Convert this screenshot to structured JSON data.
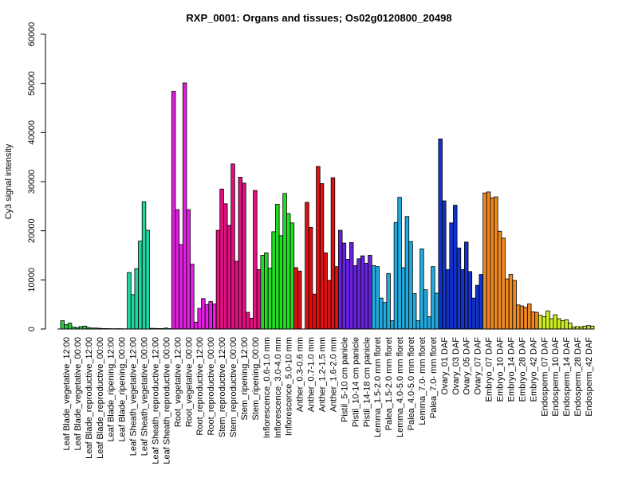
{
  "chart_data": {
    "type": "bar",
    "title": "RXP_0001: Organs and tissues; Os02g0120800_20498",
    "xlabel": "",
    "ylabel": "Cy3 signal intensity",
    "ylim": [
      0,
      60000
    ],
    "yticks": [
      0,
      10000,
      20000,
      30000,
      40000,
      50000,
      60000
    ],
    "grid": false,
    "legend": "none",
    "groups": [
      {
        "label": "Leaf Blade_vegetative_12:00",
        "color": "#2ecc40",
        "values": [
          1700,
          900,
          1200
        ]
      },
      {
        "label": "Leaf Blade_vegetative_00:00",
        "color": "#2ecc40",
        "values": [
          400,
          300,
          500
        ]
      },
      {
        "label": "Leaf Blade_reproductive_12:00",
        "color": "#2ecc40",
        "values": [
          600,
          300,
          200
        ]
      },
      {
        "label": "Leaf Blade_reproductive_00:00",
        "color": "#2ecc40",
        "values": [
          200,
          150,
          100
        ]
      },
      {
        "label": "Leaf Blade_ripening_12:00",
        "color": "#2ecc40",
        "values": [
          100,
          80,
          60
        ]
      },
      {
        "label": "Leaf Blade_ripening_00:00",
        "color": "#2ecc40",
        "values": [
          80,
          60,
          50
        ]
      },
      {
        "label": "Leaf Sheath_vegetative_12:00",
        "color": "#1fd6a0",
        "values": [
          11500,
          7000,
          12300
        ]
      },
      {
        "label": "Leaf Sheath_vegetative_00:00",
        "color": "#1fd6a0",
        "values": [
          17900,
          25900,
          20100
        ]
      },
      {
        "label": "Leaf Sheath_reproductive_12:00",
        "color": "#1fd6a0",
        "values": [
          150,
          120,
          100
        ]
      },
      {
        "label": "Leaf Sheath_reproductive_00:00",
        "color": "#1fd6a0",
        "values": [
          100,
          200,
          80
        ]
      },
      {
        "label": "Root_vegetative_12:00",
        "color": "#e020e0",
        "values": [
          48400,
          24300,
          17200
        ]
      },
      {
        "label": "Root_vegetative_00:00",
        "color": "#e020e0",
        "values": [
          50100,
          24300,
          13200
        ]
      },
      {
        "label": "Root_reproductive_12:00",
        "color": "#e020e0",
        "values": [
          1400,
          4200,
          6200
        ]
      },
      {
        "label": "Root_reproductive_00:00",
        "color": "#e020e0",
        "values": [
          5000,
          5600,
          5100
        ]
      },
      {
        "label": "Stem_reproductive_12:00",
        "color": "#e01080",
        "values": [
          20100,
          28500,
          25500
        ]
      },
      {
        "label": "Stem_reproductive_00:00",
        "color": "#e01080",
        "values": [
          21100,
          33600,
          13800
        ]
      },
      {
        "label": "Stem_ripening_12:00",
        "color": "#e01080",
        "values": [
          30900,
          29700,
          3400
        ]
      },
      {
        "label": "Stem_ripening_00:00",
        "color": "#e01080",
        "values": [
          2200,
          28200,
          12100
        ]
      },
      {
        "label": "Inflorescence_0.6-1.0 mm",
        "color": "#22dd22",
        "values": [
          15000,
          15500,
          12400
        ]
      },
      {
        "label": "Inflorescence_3.0-4.0 mm",
        "color": "#22dd22",
        "values": [
          19800,
          25400,
          19000
        ]
      },
      {
        "label": "Inflorescence_5.0-10 mm",
        "color": "#22dd22",
        "values": [
          27600,
          23500,
          21600
        ]
      },
      {
        "label": "Anther_0.3-0.6 mm",
        "color": "#dd1111",
        "values": [
          12500,
          11800
        ]
      },
      {
        "label": "Anther_0.7-1.0 mm",
        "color": "#dd1111",
        "values": [
          25800,
          20700,
          7100
        ]
      },
      {
        "label": "Anther_1.2-1.5 mm",
        "color": "#dd1111",
        "values": [
          33100,
          29600,
          15500
        ]
      },
      {
        "label": "Anther_1.6-2.0 mm",
        "color": "#dd1111",
        "values": [
          9900,
          30800,
          12700
        ]
      },
      {
        "label": "Pistil_5-10 cm panicle",
        "color": "#6622dd",
        "values": [
          20100,
          17500,
          14200
        ]
      },
      {
        "label": "Pistil_10-14 cm panicle",
        "color": "#6622dd",
        "values": [
          17600,
          12900,
          14300
        ]
      },
      {
        "label": "Pistil_14-18 cm panicle",
        "color": "#6622dd",
        "values": [
          14900,
          13400,
          15000
        ]
      },
      {
        "label": "Lemma_1.5-2.0 mm floret",
        "color": "#22aadd",
        "values": [
          12900,
          12700,
          6300
        ]
      },
      {
        "label": "Palea_1.5-2.0 mm floret",
        "color": "#22aadd",
        "values": [
          5400,
          11300,
          1700
        ]
      },
      {
        "label": "Lemma_4.0-5.0 mm floret",
        "color": "#22aadd",
        "values": [
          21700,
          26800,
          12500
        ]
      },
      {
        "label": "Palea_4.0-5.0 mm floret",
        "color": "#22aadd",
        "values": [
          22900,
          17800,
          7200
        ]
      },
      {
        "label": "Lemma_7.0- mm floret",
        "color": "#22aadd",
        "values": [
          1700,
          16300,
          8000
        ]
      },
      {
        "label": "Palea_7.0- mm floret",
        "color": "#22aadd",
        "values": [
          2500,
          12700,
          7300
        ]
      },
      {
        "label": "Ovary_01 DAF",
        "color": "#1133cc",
        "values": [
          38700,
          26100,
          12100
        ]
      },
      {
        "label": "Ovary_03 DAF",
        "color": "#1133cc",
        "values": [
          21600,
          25200,
          16500
        ]
      },
      {
        "label": "Ovary_05 DAF",
        "color": "#1133cc",
        "values": [
          12100,
          17700,
          11700
        ]
      },
      {
        "label": "Ovary_07 DAF",
        "color": "#1133cc",
        "values": [
          6300,
          8900,
          11100
        ]
      },
      {
        "label": "Embryo_07 DAF",
        "color": "#ee8822",
        "values": [
          27700,
          27900,
          26700
        ]
      },
      {
        "label": "Embryo_10 DAF",
        "color": "#ee8822",
        "values": [
          26900,
          19900,
          18500
        ]
      },
      {
        "label": "Embryo_14 DAF",
        "color": "#ee8822",
        "values": [
          10200,
          11100,
          9900
        ]
      },
      {
        "label": "Embryo_28 DAF",
        "color": "#ee8822",
        "values": [
          4900,
          4700,
          4400
        ]
      },
      {
        "label": "Embryo_42 DAF",
        "color": "#ee8822",
        "values": [
          5100,
          3500,
          3400
        ]
      },
      {
        "label": "Endosperm_07 DAF",
        "color": "#ccee22",
        "values": [
          2800,
          2500,
          3700
        ]
      },
      {
        "label": "Endosperm_10 DAF",
        "color": "#ccee22",
        "values": [
          2100,
          2900,
          2100
        ]
      },
      {
        "label": "Endosperm_14 DAF",
        "color": "#ccee22",
        "values": [
          1700,
          1900,
          1200
        ]
      },
      {
        "label": "Endosperm_28 DAF",
        "color": "#ccee22",
        "values": [
          400,
          500,
          400
        ]
      },
      {
        "label": "Endosperm_42 DAF",
        "color": "#ccee22",
        "values": [
          600,
          700,
          600
        ]
      }
    ]
  }
}
